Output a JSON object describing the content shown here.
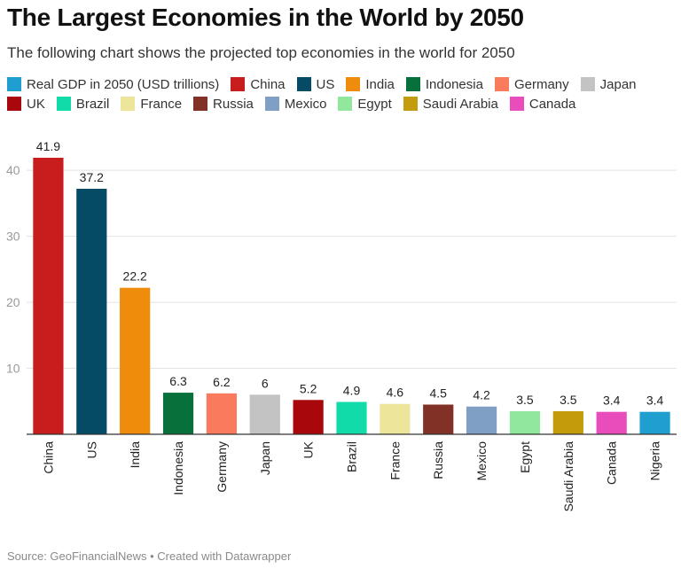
{
  "header": {
    "title": "The Largest Economies in the World by 2050",
    "subtitle": "The following chart shows the projected top economies in the world for 2050"
  },
  "legend": [
    {
      "label": "Real GDP in 2050 (USD trillions)",
      "color": "#1f9fcf"
    },
    {
      "label": "China",
      "color": "#c71e1d"
    },
    {
      "label": "US",
      "color": "#054b66"
    },
    {
      "label": "India",
      "color": "#f08c0c"
    },
    {
      "label": "Indonesia",
      "color": "#08703a"
    },
    {
      "label": "Germany",
      "color": "#f97a5c"
    },
    {
      "label": "Japan",
      "color": "#c3c3c3"
    },
    {
      "label": "UK",
      "color": "#a8080b"
    },
    {
      "label": "Brazil",
      "color": "#12dbaa"
    },
    {
      "label": "France",
      "color": "#ede69a"
    },
    {
      "label": "Russia",
      "color": "#813126"
    },
    {
      "label": "Mexico",
      "color": "#7f9fc4"
    },
    {
      "label": "Egypt",
      "color": "#91e89d"
    },
    {
      "label": "Saudi Arabia",
      "color": "#c29c0a"
    },
    {
      "label": "Canada",
      "color": "#e84dbb"
    }
  ],
  "chart_data": {
    "type": "bar",
    "categories": [
      "China",
      "US",
      "India",
      "Indonesia",
      "Germany",
      "Japan",
      "UK",
      "Brazil",
      "France",
      "Russia",
      "Mexico",
      "Egypt",
      "Saudi Arabia",
      "Canada",
      "Nigeria"
    ],
    "values": [
      41.9,
      37.2,
      22.2,
      6.3,
      6.2,
      6,
      5.2,
      4.9,
      4.6,
      4.5,
      4.2,
      3.5,
      3.5,
      3.4,
      3.4
    ],
    "value_labels": [
      "41.9",
      "37.2",
      "22.2",
      "6.3",
      "6.2",
      "6",
      "5.2",
      "4.9",
      "4.6",
      "4.5",
      "4.2",
      "3.5",
      "3.5",
      "3.4",
      "3.4"
    ],
    "colors": [
      "#c71e1d",
      "#054b66",
      "#f08c0c",
      "#08703a",
      "#f97a5c",
      "#c3c3c3",
      "#a8080b",
      "#12dbaa",
      "#ede69a",
      "#813126",
      "#7f9fc4",
      "#91e89d",
      "#c29c0a",
      "#e84dbb",
      "#1f9fcf"
    ],
    "yticks": [
      10,
      20,
      30,
      40
    ],
    "ylim": [
      0,
      41.9
    ],
    "title": "The Largest Economies in the World by 2050",
    "xlabel": "",
    "ylabel": "",
    "grid": true,
    "legend_position": "top"
  },
  "footer": {
    "source": "Source: GeoFinancialNews • Created with Datawrapper"
  }
}
